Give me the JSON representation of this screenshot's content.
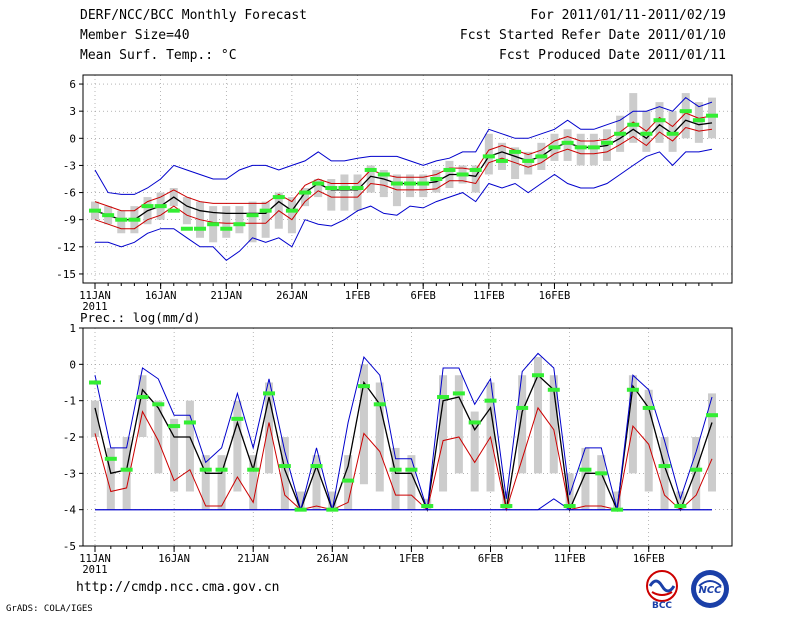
{
  "header": {
    "title": "DERF/NCC/BCC Monthly Forecast",
    "member_size": "Member Size=40",
    "variable": "Mean Surf. Temp.: °C",
    "period": "For 2011/01/11-2011/02/19",
    "start_date": "Fcst Started Refer Date 2011/01/10",
    "produced_date": "Fcst Produced Date 2011/01/11"
  },
  "footer": {
    "url": "http://cmdp.ncc.cma.gov.cn",
    "credit": "GrADS: COLA/IGES",
    "logo_left_text": "BCC",
    "logo_right_text": "NCC"
  },
  "colors": {
    "ensemble_mean": "#000000",
    "spread_red": "#cc0000",
    "envelope_blue": "#0000cc",
    "observed_green": "#33ee33",
    "box_gray": "#cccccc"
  },
  "chart_data": [
    {
      "type": "line",
      "title": "Mean Surf. Temp.: °C",
      "xlabel": "",
      "ylabel": "°C",
      "ylim": [
        -16,
        7
      ],
      "yticks": [
        -15,
        -12,
        -9,
        -6,
        -3,
        0,
        3,
        6
      ],
      "x_tick_labels": [
        "11JAN",
        "16JAN",
        "21JAN",
        "26JAN",
        "1FEB",
        "6FEB",
        "11FEB",
        "16FEB"
      ],
      "x_year_label": "2011",
      "series": [
        {
          "name": "ensemble mean",
          "values": [
            -8.0,
            -8.5,
            -9.0,
            -9.0,
            -8.0,
            -7.5,
            -6.5,
            -7.5,
            -8.0,
            -8.2,
            -8.3,
            -8.3,
            -8.3,
            -8.3,
            -7.0,
            -8.0,
            -6.0,
            -5.0,
            -5.7,
            -5.7,
            -5.7,
            -4.2,
            -4.5,
            -5.0,
            -5.0,
            -5.0,
            -4.8,
            -4.0,
            -4.0,
            -4.2,
            -2.0,
            -1.5,
            -2.0,
            -2.5,
            -2.0,
            -1.0,
            -0.5,
            -1.0,
            -1.0,
            -0.8,
            0.0,
            1.0,
            0.0,
            1.5,
            0.5,
            2.0,
            1.5,
            1.7
          ]
        },
        {
          "name": "spread upper",
          "values": [
            -7.0,
            -7.5,
            -8.0,
            -8.0,
            -7.0,
            -6.5,
            -5.7,
            -6.5,
            -7.0,
            -7.2,
            -7.2,
            -7.2,
            -7.2,
            -7.2,
            -6.2,
            -7.0,
            -5.2,
            -4.5,
            -5.0,
            -5.0,
            -5.0,
            -3.5,
            -4.0,
            -4.3,
            -4.3,
            -4.3,
            -4.0,
            -3.3,
            -3.3,
            -3.5,
            -1.3,
            -0.8,
            -1.3,
            -1.8,
            -1.3,
            -0.3,
            0.2,
            -0.3,
            -0.3,
            -0.1,
            0.7,
            1.8,
            0.8,
            2.3,
            1.3,
            2.8,
            2.2,
            2.5
          ]
        },
        {
          "name": "spread lower",
          "values": [
            -9.0,
            -9.5,
            -10.0,
            -10.0,
            -9.0,
            -8.5,
            -7.5,
            -8.5,
            -9.0,
            -9.3,
            -9.4,
            -9.4,
            -9.4,
            -9.4,
            -8.0,
            -9.0,
            -7.0,
            -5.8,
            -6.5,
            -6.5,
            -6.5,
            -5.0,
            -5.2,
            -5.7,
            -5.7,
            -5.7,
            -5.6,
            -4.7,
            -4.7,
            -5.0,
            -2.7,
            -2.2,
            -2.7,
            -3.2,
            -2.7,
            -1.7,
            -1.2,
            -1.7,
            -1.7,
            -1.5,
            -0.7,
            0.2,
            -0.8,
            0.7,
            -0.3,
            1.2,
            0.8,
            1.0
          ]
        },
        {
          "name": "envelope max",
          "values": [
            -3.5,
            -6.0,
            -6.2,
            -6.2,
            -5.5,
            -4.5,
            -3.0,
            -3.5,
            -4.0,
            -4.5,
            -4.5,
            -3.5,
            -3.0,
            -3.0,
            -3.5,
            -3.0,
            -2.5,
            -1.5,
            -2.5,
            -2.5,
            -2.2,
            -2.0,
            -2.0,
            -2.0,
            -2.5,
            -3.0,
            -2.5,
            -2.2,
            -1.5,
            -1.5,
            1.0,
            0.5,
            0.0,
            0.0,
            0.5,
            1.0,
            2.0,
            1.0,
            1.0,
            1.5,
            2.0,
            3.0,
            3.0,
            3.5,
            3.0,
            4.5,
            3.5,
            4.0
          ]
        },
        {
          "name": "envelope min",
          "values": [
            -11.5,
            -11.5,
            -12.0,
            -11.5,
            -10.5,
            -10.0,
            -10.0,
            -11.0,
            -12.0,
            -12.0,
            -13.5,
            -12.5,
            -11.0,
            -11.5,
            -11.0,
            -12.0,
            -9.0,
            -9.5,
            -9.7,
            -9.0,
            -8.0,
            -7.5,
            -8.3,
            -8.5,
            -7.5,
            -7.7,
            -7.0,
            -6.5,
            -6.0,
            -7.0,
            -5.0,
            -5.5,
            -5.0,
            -6.0,
            -5.0,
            -4.0,
            -5.0,
            -5.5,
            -5.5,
            -5.0,
            -4.0,
            -3.0,
            -2.0,
            -1.5,
            -3.0,
            -1.5,
            -1.5,
            -1.2
          ]
        }
      ],
      "box_ranges": [
        [
          -9.0,
          -7.0
        ],
        [
          -9.5,
          -7.5
        ],
        [
          -10.5,
          -8.0
        ],
        [
          -10.5,
          -7.5
        ],
        [
          -9.5,
          -6.5
        ],
        [
          -9.0,
          -6.0
        ],
        [
          -7.5,
          -5.5
        ],
        [
          -9.5,
          -6.5
        ],
        [
          -11.0,
          -7.0
        ],
        [
          -11.5,
          -7.5
        ],
        [
          -11.0,
          -7.5
        ],
        [
          -10.5,
          -7.5
        ],
        [
          -11.5,
          -7.0
        ],
        [
          -11.0,
          -7.0
        ],
        [
          -10.0,
          -6.0
        ],
        [
          -10.5,
          -6.5
        ],
        [
          -7.5,
          -5.5
        ],
        [
          -6.5,
          -4.5
        ],
        [
          -8.0,
          -4.5
        ],
        [
          -8.0,
          -4.0
        ],
        [
          -8.0,
          -4.0
        ],
        [
          -6.0,
          -3.0
        ],
        [
          -6.5,
          -3.5
        ],
        [
          -7.5,
          -4.0
        ],
        [
          -6.5,
          -4.0
        ],
        [
          -6.5,
          -4.0
        ],
        [
          -6.0,
          -3.5
        ],
        [
          -5.5,
          -2.5
        ],
        [
          -5.0,
          -3.0
        ],
        [
          -6.0,
          -3.0
        ],
        [
          -4.0,
          0.5
        ],
        [
          -3.5,
          -0.5
        ],
        [
          -4.5,
          -1.0
        ],
        [
          -4.0,
          -1.5
        ],
        [
          -3.5,
          -0.5
        ],
        [
          -2.5,
          0.5
        ],
        [
          -2.5,
          1.0
        ],
        [
          -3.0,
          0.5
        ],
        [
          -3.0,
          0.5
        ],
        [
          -2.5,
          1.0
        ],
        [
          -1.5,
          2.5
        ],
        [
          -0.5,
          5.0
        ],
        [
          -1.5,
          3.0
        ],
        [
          -0.5,
          4.0
        ],
        [
          -1.5,
          3.0
        ],
        [
          0.0,
          5.0
        ],
        [
          -0.5,
          4.0
        ],
        [
          0.0,
          4.5
        ]
      ],
      "observed": [
        -8.0,
        -8.5,
        -9.0,
        -9.0,
        -7.5,
        -7.5,
        -8.0,
        -10.0,
        -10.0,
        -9.5,
        -10.0,
        -9.5,
        -8.5,
        -8.0,
        -6.5,
        -8.0,
        -6.0,
        -5.0,
        -5.5,
        -5.5,
        -5.5,
        -3.5,
        -4.0,
        -5.0,
        -5.0,
        -5.0,
        -4.5,
        -3.5,
        -4.0,
        -3.5,
        -2.0,
        -2.5,
        -1.5,
        -2.5,
        -2.0,
        -1.0,
        -0.5,
        -1.0,
        -1.0,
        -0.5,
        0.5,
        1.5,
        0.5,
        2.0,
        0.5,
        3.0,
        2.0,
        2.5
      ]
    },
    {
      "type": "line",
      "title": "Prec.: log(mm/d)",
      "xlabel": "",
      "ylabel": "log(mm/d)",
      "ylim": [
        -5,
        1
      ],
      "yticks": [
        -5,
        -4,
        -3,
        -2,
        -1,
        0,
        1
      ],
      "x_tick_labels": [
        "11JAN",
        "16JAN",
        "21JAN",
        "26JAN",
        "1FEB",
        "6FEB",
        "11FEB",
        "16FEB"
      ],
      "x_year_label": "2011",
      "series": [
        {
          "name": "ensemble mean",
          "values": [
            -1.2,
            -3.0,
            -2.9,
            -0.7,
            -1.2,
            -2.0,
            -2.0,
            -3.0,
            -3.0,
            -1.6,
            -2.9,
            -0.9,
            -2.9,
            -4.0,
            -2.8,
            -4.0,
            -2.8,
            -0.5,
            -1.1,
            -3.0,
            -3.0,
            -4.0,
            -1.0,
            -0.9,
            -1.8,
            -1.2,
            -4.0,
            -1.3,
            -0.3,
            -0.7,
            -4.0,
            -3.0,
            -3.0,
            -4.0,
            -0.6,
            -1.2,
            -2.8,
            -4.0,
            -2.9,
            -1.6
          ]
        },
        {
          "name": "spread lower",
          "values": [
            -1.9,
            -3.5,
            -3.4,
            -1.3,
            -2.1,
            -3.2,
            -2.9,
            -3.9,
            -3.9,
            -3.1,
            -3.8,
            -1.6,
            -3.6,
            -4.0,
            -3.9,
            -4.0,
            -3.8,
            -1.9,
            -2.4,
            -3.6,
            -3.6,
            -4.0,
            -2.1,
            -2.0,
            -2.7,
            -2.0,
            -4.0,
            -2.6,
            -1.2,
            -1.8,
            -4.0,
            -3.9,
            -3.9,
            -4.0,
            -1.7,
            -2.2,
            -3.6,
            -4.0,
            -3.6,
            -2.6
          ]
        },
        {
          "name": "envelope max",
          "values": [
            -0.3,
            -2.3,
            -2.3,
            -0.1,
            -0.4,
            -1.4,
            -1.4,
            -2.7,
            -2.3,
            -0.8,
            -2.3,
            -0.4,
            -2.4,
            -4.0,
            -2.3,
            -4.0,
            -1.6,
            0.2,
            -0.3,
            -2.6,
            -2.6,
            -4.0,
            -0.1,
            -0.1,
            -1.1,
            -0.4,
            -3.7,
            -0.2,
            0.3,
            -0.1,
            -3.6,
            -2.3,
            -2.3,
            -4.0,
            -0.3,
            -0.7,
            -2.1,
            -3.7,
            -2.4,
            -0.9
          ]
        },
        {
          "name": "envelope min",
          "values": [
            -4.0,
            -4.0,
            -4.0,
            -4.0,
            -4.0,
            -4.0,
            -4.0,
            -4.0,
            -4.0,
            -4.0,
            -4.0,
            -4.0,
            -4.0,
            -4.0,
            -4.0,
            -4.0,
            -4.0,
            -4.0,
            -4.0,
            -4.0,
            -4.0,
            -4.0,
            -4.0,
            -4.0,
            -4.0,
            -4.0,
            -4.0,
            -4.0,
            -4.0,
            -3.7,
            -4.0,
            -4.0,
            -4.0,
            -4.0,
            -4.0,
            -4.0,
            -4.0,
            -4.0,
            -4.0,
            -4.0
          ]
        },
        {
          "name": "envelope min alt",
          "values": [
            -4.0,
            -4.0,
            -4.0,
            -4.0,
            -4.0,
            -4.0,
            -4.0,
            -4.0,
            -4.0,
            -4.0,
            -4.0,
            -4.0,
            -4.0,
            -4.0,
            -4.0,
            -4.0,
            -4.0,
            -4.0,
            -4.0,
            -4.0,
            -4.0,
            -4.0,
            -4.0,
            -4.0,
            -4.0,
            -4.0,
            -4.0,
            -4.0,
            -4.0,
            -4.0,
            -4.0,
            -4.0,
            -4.0,
            -4.0,
            -4.0,
            -4.0,
            -4.0,
            -4.0,
            -4.0,
            -4.0
          ]
        }
      ],
      "box_ranges": [
        [
          -2.0,
          -1.0
        ],
        [
          -4.0,
          -2.3
        ],
        [
          -4.0,
          -2.0
        ],
        [
          -2.0,
          -0.3
        ],
        [
          -3.0,
          -1.0
        ],
        [
          -3.5,
          -1.5
        ],
        [
          -3.5,
          -1.0
        ],
        [
          -4.0,
          -2.5
        ],
        [
          -4.0,
          -2.5
        ],
        [
          -3.5,
          -1.0
        ],
        [
          -4.0,
          -2.5
        ],
        [
          -3.0,
          -0.5
        ],
        [
          -4.0,
          -2.0
        ],
        [
          -4.0,
          -3.5
        ],
        [
          -4.0,
          -2.5
        ],
        [
          -4.0,
          -3.5
        ],
        [
          -4.0,
          -2.5
        ],
        [
          -3.3,
          0.0
        ],
        [
          -3.5,
          -0.5
        ],
        [
          -4.0,
          -2.3
        ],
        [
          -4.0,
          -2.5
        ],
        [
          -4.0,
          -3.7
        ],
        [
          -3.5,
          -0.3
        ],
        [
          -3.0,
          -0.3
        ],
        [
          -3.5,
          -1.3
        ],
        [
          -3.5,
          -0.5
        ],
        [
          -4.0,
          -3.5
        ],
        [
          -3.0,
          -0.3
        ],
        [
          -3.0,
          0.2
        ],
        [
          -3.0,
          -0.3
        ],
        [
          -4.0,
          -3.0
        ],
        [
          -4.0,
          -2.3
        ],
        [
          -4.0,
          -2.5
        ],
        [
          -4.0,
          -3.5
        ],
        [
          -3.0,
          -0.3
        ],
        [
          -3.5,
          -0.7
        ],
        [
          -4.0,
          -2.0
        ],
        [
          -4.0,
          -3.5
        ],
        [
          -4.0,
          -2.0
        ],
        [
          -3.5,
          -0.8
        ]
      ],
      "observed": [
        -0.5,
        -2.6,
        -2.9,
        -0.9,
        -1.1,
        -1.7,
        -1.6,
        -2.9,
        -2.9,
        -1.5,
        -2.9,
        -0.8,
        -2.8,
        -4.0,
        -2.8,
        -4.0,
        -3.2,
        -0.6,
        -1.1,
        -2.9,
        -2.9,
        -3.9,
        -0.9,
        -0.8,
        -1.6,
        -1.0,
        -3.9,
        -1.2,
        -0.3,
        -0.7,
        -3.9,
        -2.9,
        -3.0,
        -4.0,
        -0.7,
        -1.2,
        -2.8,
        -3.9,
        -2.9,
        -1.4
      ]
    }
  ]
}
